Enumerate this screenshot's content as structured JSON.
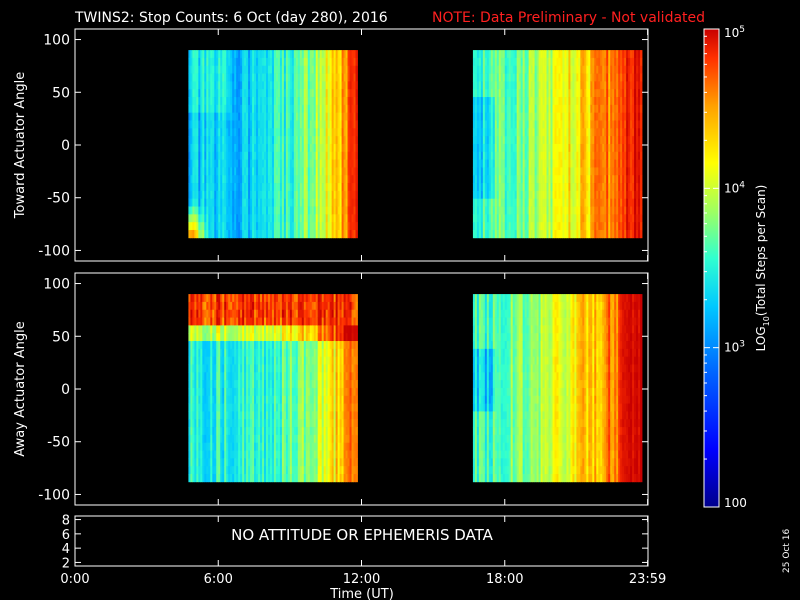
{
  "header": {
    "title": "TWINS2: Stop Counts:  6 Oct (day 280), 2016",
    "note": "NOTE: Data Preliminary - Not validated"
  },
  "stamp": "25 Oct 16",
  "colors": {
    "background": "#000000",
    "axes": "#ffffff",
    "note": "#ff2020",
    "colormap": [
      "#00008c",
      "#0000ff",
      "#0064ff",
      "#00c8ff",
      "#30ffd0",
      "#a0ff60",
      "#ffff00",
      "#ffa000",
      "#ff3000",
      "#c80000"
    ]
  },
  "chart_data": [
    {
      "type": "heatmap",
      "panel": "top",
      "ylabel": "Toward Actuator Angle",
      "ylim": [
        -110,
        110
      ],
      "yticks": [
        100,
        50,
        0,
        -50,
        -100
      ],
      "xlim": [
        0,
        24
      ],
      "data_blocks": [
        {
          "start": "04:45",
          "end": "11:50",
          "angle_range": [
            -88,
            90
          ]
        },
        {
          "start": "16:40",
          "end": "23:45",
          "angle_range": [
            -88,
            90
          ]
        }
      ],
      "value_scale": "log",
      "typical_log10_counts": {
        "block1_left": 3.0,
        "block1_right": 4.5,
        "block2_left": 3.2,
        "block2_right": 4.9
      }
    },
    {
      "type": "heatmap",
      "panel": "middle",
      "ylabel": "Away Actuator Angle",
      "ylim": [
        -110,
        110
      ],
      "yticks": [
        100,
        50,
        0,
        -50,
        -100
      ],
      "xlim": [
        0,
        24
      ],
      "data_blocks": [
        {
          "start": "04:45",
          "end": "11:50",
          "angle_range": [
            -88,
            90
          ]
        },
        {
          "start": "16:40",
          "end": "23:45",
          "angle_range": [
            -88,
            90
          ]
        }
      ],
      "value_scale": "log",
      "typical_log10_counts": {
        "block1_high_angle": 4.6,
        "block1_body": 3.3,
        "block2_left": 3.2,
        "block2_right": 4.9
      }
    },
    {
      "type": "line",
      "panel": "bottom",
      "yticks": [
        8,
        6,
        4,
        2
      ],
      "ylim": [
        1.5,
        8.5
      ],
      "message": "NO ATTITUDE OR EPHEMERIS DATA",
      "xlabel": "Time (UT)",
      "xticks": [
        "0:00",
        "6:00",
        "12:00",
        "18:00",
        "23:59"
      ]
    },
    {
      "type": "colorbar",
      "label": "LOG",
      "label_sub": "10",
      "label_rest": "(Total Steps per Scan)",
      "range": [
        100,
        100000
      ],
      "ticks": [
        {
          "base": "10",
          "exp": "5",
          "value": 100000
        },
        {
          "base": "10",
          "exp": "4",
          "value": 10000
        },
        {
          "base": "10",
          "exp": "3",
          "value": 1000
        },
        {
          "base": "100",
          "exp": "",
          "value": 100
        }
      ]
    }
  ]
}
